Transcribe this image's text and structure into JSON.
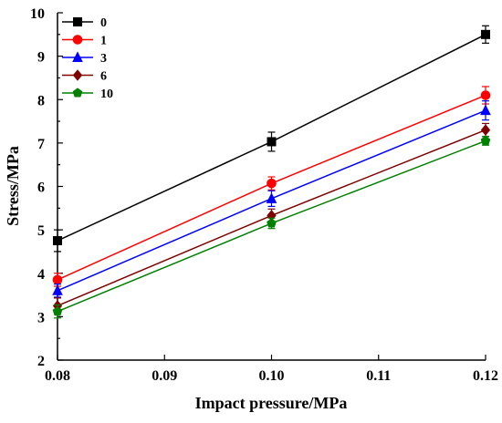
{
  "chart_data": {
    "type": "line",
    "xlabel": "Impact pressure/MPa",
    "ylabel": "Stress/MPa",
    "xlim": [
      0.08,
      0.12
    ],
    "ylim": [
      2,
      10
    ],
    "x_ticks": [
      "0.08",
      "0.09",
      "0.10",
      "0.11",
      "0.12"
    ],
    "y_ticks": [
      "2",
      "3",
      "4",
      "5",
      "6",
      "7",
      "8",
      "9",
      "10"
    ],
    "x": [
      0.08,
      0.1,
      0.12
    ],
    "legend_position": "top-left",
    "grid": false,
    "series": [
      {
        "name": "0",
        "color": "#000000",
        "marker": "square",
        "values": [
          4.75,
          7.03,
          9.5
        ],
        "errors": [
          0.25,
          0.22,
          0.2
        ]
      },
      {
        "name": "1",
        "color": "#ff0000",
        "marker": "circle",
        "values": [
          3.85,
          6.07,
          8.1
        ],
        "errors": [
          0.15,
          0.15,
          0.2
        ]
      },
      {
        "name": "3",
        "color": "#0000ff",
        "marker": "triangle",
        "values": [
          3.6,
          5.72,
          7.75
        ],
        "errors": [
          0.15,
          0.18,
          0.22
        ]
      },
      {
        "name": "6",
        "color": "#800000",
        "marker": "diamond",
        "values": [
          3.25,
          5.33,
          7.3
        ],
        "errors": [
          0.18,
          0.15,
          0.15
        ]
      },
      {
        "name": "10",
        "color": "#008000",
        "marker": "pentagon",
        "values": [
          3.12,
          5.15,
          7.05
        ],
        "errors": [
          0.15,
          0.12,
          0.1
        ]
      }
    ]
  }
}
